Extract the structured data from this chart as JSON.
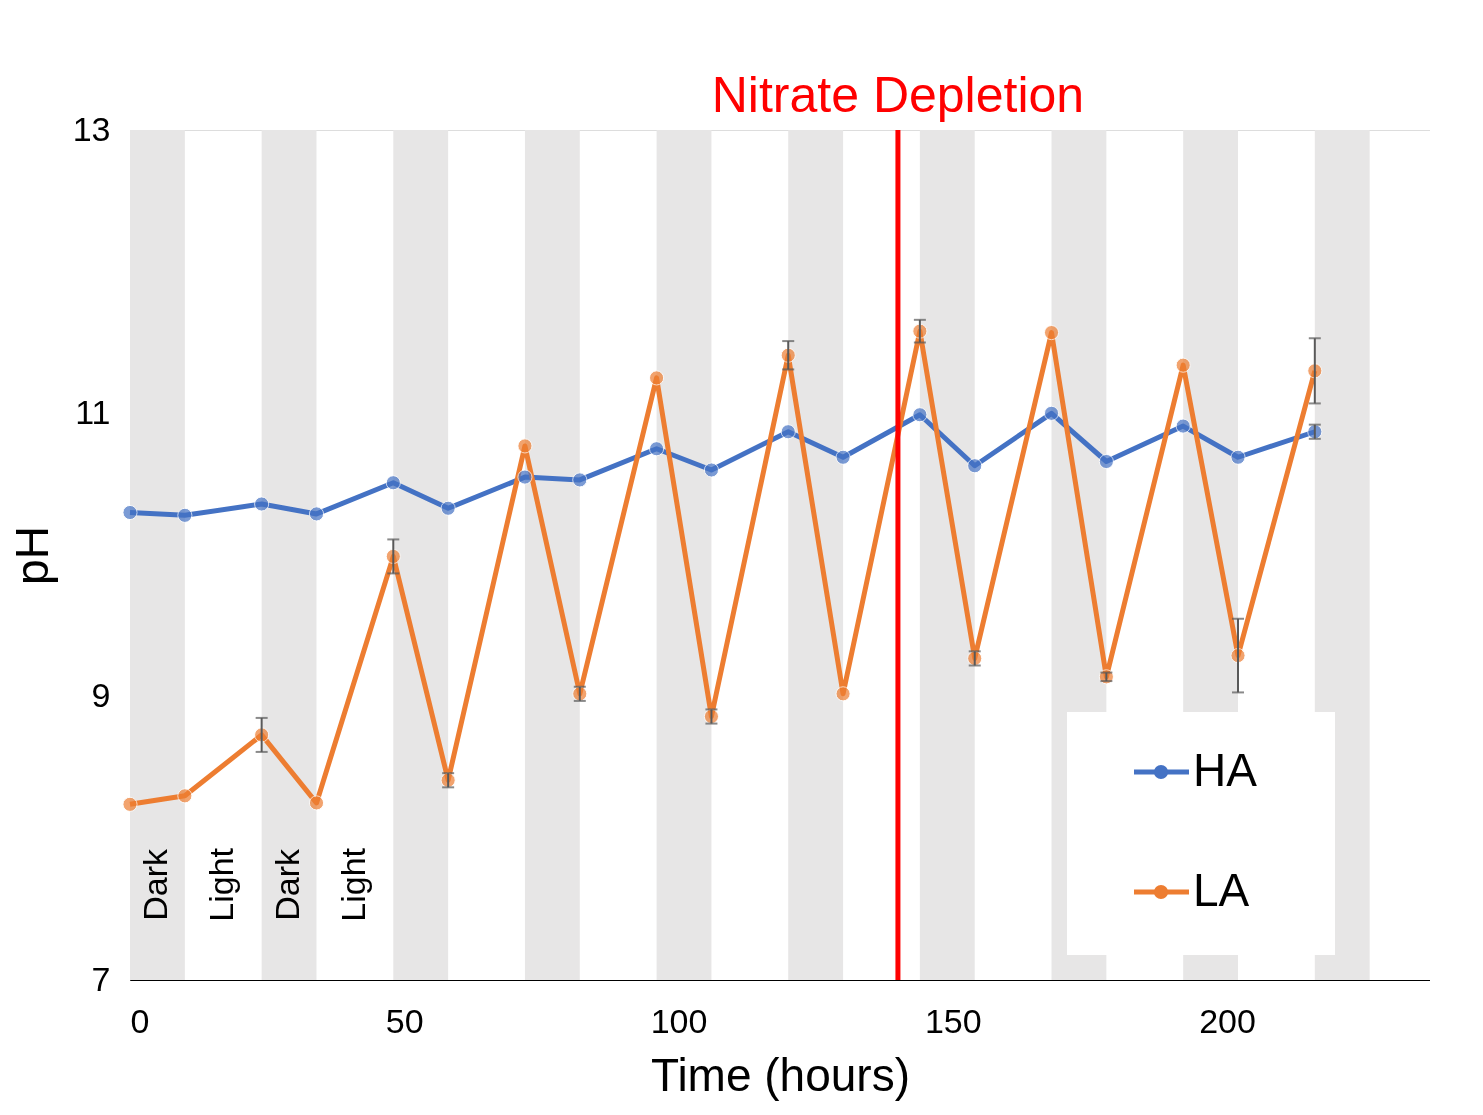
{
  "chart_data": {
    "type": "line",
    "xlabel": "Time (hours)",
    "ylabel": "pH",
    "x": [
      0,
      10,
      24,
      34,
      48,
      58,
      72,
      82,
      96,
      106,
      120,
      130,
      144,
      154,
      168,
      178,
      192,
      202,
      216
    ],
    "series": [
      {
        "name": "HA",
        "color": "#4472c4",
        "values": [
          10.3,
          10.28,
          10.36,
          10.29,
          10.51,
          10.33,
          10.55,
          10.53,
          10.75,
          10.6,
          10.87,
          10.69,
          10.99,
          10.63,
          11.0,
          10.66,
          10.91,
          10.69,
          10.87
        ],
        "errors": [
          null,
          null,
          null,
          null,
          null,
          null,
          null,
          null,
          null,
          null,
          null,
          null,
          null,
          null,
          null,
          null,
          null,
          null,
          0.05
        ]
      },
      {
        "name": "LA",
        "color": "#ed7d31",
        "values": [
          8.24,
          8.3,
          8.73,
          8.25,
          9.99,
          8.41,
          10.77,
          9.02,
          11.25,
          8.86,
          11.41,
          9.02,
          11.58,
          9.27,
          11.57,
          9.14,
          11.34,
          9.29,
          11.3
        ],
        "errors": [
          null,
          null,
          0.12,
          null,
          0.12,
          0.05,
          null,
          0.05,
          null,
          0.05,
          0.1,
          null,
          0.08,
          0.05,
          null,
          0.03,
          null,
          0.26,
          0.23
        ]
      }
    ],
    "xlim": [
      0,
      237
    ],
    "ylim": [
      7,
      13
    ],
    "xticks": [
      0,
      50,
      100,
      150,
      200
    ],
    "yticks": [
      7,
      9,
      11,
      13
    ],
    "bands": [
      {
        "axis": "x",
        "from": 0,
        "to": 10,
        "color": "#e7e6e6"
      },
      {
        "axis": "x",
        "from": 24,
        "to": 34,
        "color": "#e7e6e6"
      },
      {
        "axis": "x",
        "from": 48,
        "to": 58,
        "color": "#e7e6e6"
      },
      {
        "axis": "x",
        "from": 72,
        "to": 82,
        "color": "#e7e6e6"
      },
      {
        "axis": "x",
        "from": 96,
        "to": 106,
        "color": "#e7e6e6"
      },
      {
        "axis": "x",
        "from": 120,
        "to": 130,
        "color": "#e7e6e6"
      },
      {
        "axis": "x",
        "from": 144,
        "to": 154,
        "color": "#e7e6e6"
      },
      {
        "axis": "x",
        "from": 168,
        "to": 178,
        "color": "#e7e6e6"
      },
      {
        "axis": "x",
        "from": 192,
        "to": 202,
        "color": "#e7e6e6"
      },
      {
        "axis": "x",
        "from": 216,
        "to": 226,
        "color": "#e7e6e6"
      }
    ],
    "ref_lines": [
      {
        "axis": "x",
        "value": 140,
        "label": "Nitrate Depletion",
        "color": "#ff0000"
      }
    ],
    "annotations": [
      "Dark",
      "Light",
      "Dark",
      "Light"
    ],
    "legend": "bottom right",
    "grid": false,
    "marker": "circle",
    "line_style": "solid"
  }
}
